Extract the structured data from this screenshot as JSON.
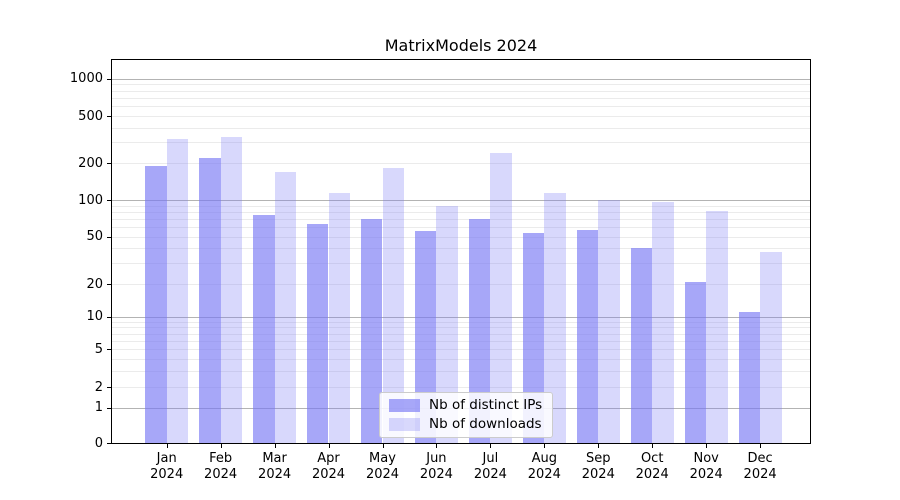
{
  "title": "MatrixModels 2024",
  "chart_data": {
    "type": "bar",
    "title": "MatrixModels 2024",
    "categories": [
      "Jan 2024",
      "Feb 2024",
      "Mar 2024",
      "Apr 2024",
      "May 2024",
      "Jun 2024",
      "Jul 2024",
      "Aug 2024",
      "Sep 2024",
      "Oct 2024",
      "Nov 2024",
      "Dec 2024"
    ],
    "series": [
      {
        "name": "Nb of distinct IPs",
        "color": "rgba(120,120,245,0.65)",
        "values": [
          190,
          220,
          76,
          64,
          70,
          56,
          70,
          54,
          57,
          40,
          21,
          11
        ]
      },
      {
        "name": "Nb of downloads",
        "color": "rgba(120,120,245,0.29)",
        "values": [
          320,
          330,
          171,
          114,
          183,
          89,
          245,
          114,
          100,
          96,
          81,
          37
        ]
      }
    ],
    "xlabel": "",
    "ylabel": "",
    "yscale": "symlog",
    "ylim": [
      0,
      1450
    ],
    "yticks": [
      0,
      1,
      2,
      5,
      10,
      20,
      50,
      100,
      200,
      500,
      1000
    ],
    "minor_gridlines": [
      2,
      3,
      4,
      5,
      6,
      7,
      8,
      9,
      20,
      30,
      40,
      50,
      60,
      70,
      80,
      90,
      200,
      300,
      400,
      500,
      600,
      700,
      800,
      900
    ],
    "major_gridlines": [
      1,
      10,
      100,
      1000
    ],
    "grid": true,
    "legend_position": "lower center",
    "colors": {
      "grid_major": "#b3b3b3",
      "grid_minor": "#ebebeb",
      "spine": "#000000",
      "background": "#ffffff"
    }
  }
}
